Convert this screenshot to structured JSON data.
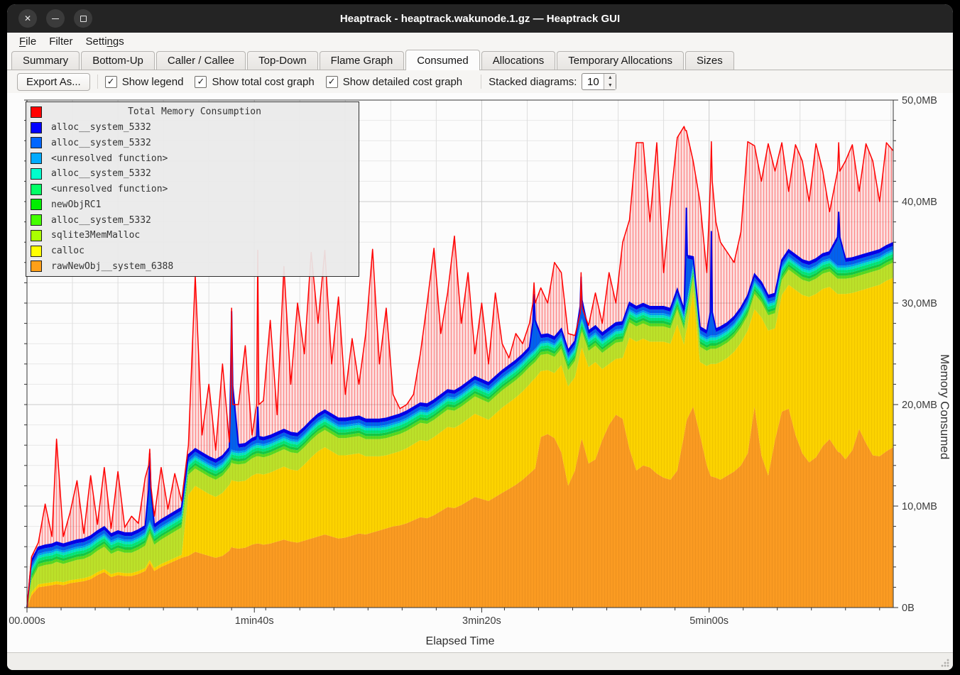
{
  "window": {
    "title": "Heaptrack - heaptrack.wakunode.1.gz — Heaptrack GUI"
  },
  "menubar": {
    "items": [
      {
        "label": "File",
        "accel": 0
      },
      {
        "label": "Filter",
        "accel": -1
      },
      {
        "label": "Settings",
        "accel": 5
      }
    ]
  },
  "tabs": {
    "items": [
      "Summary",
      "Bottom-Up",
      "Caller / Callee",
      "Top-Down",
      "Flame Graph",
      "Consumed",
      "Allocations",
      "Temporary Allocations",
      "Sizes"
    ],
    "active": "Consumed"
  },
  "toolbar": {
    "export_label": "Export As...",
    "checkboxes": [
      {
        "label": "Show legend",
        "checked": true
      },
      {
        "label": "Show total cost graph",
        "checked": true
      },
      {
        "label": "Show detailed cost graph",
        "checked": true
      }
    ],
    "check_glyph": "✓",
    "stacked_label": "Stacked diagrams:",
    "stacked_value": "10"
  },
  "legend": {
    "rows": [
      {
        "swatch": "#ff0000",
        "label": "Total Memory Consumption",
        "centered": true
      },
      {
        "swatch": "#0000ff",
        "label": "alloc__system_5332"
      },
      {
        "swatch": "#0066ff",
        "label": "alloc__system_5332"
      },
      {
        "swatch": "#00aaff",
        "label": "<unresolved function>"
      },
      {
        "swatch": "#00ffcc",
        "label": "alloc__system_5332"
      },
      {
        "swatch": "#00ff66",
        "label": "<unresolved function>"
      },
      {
        "swatch": "#00ee00",
        "label": "newObjRC1"
      },
      {
        "swatch": "#44ff00",
        "label": "alloc__system_5332"
      },
      {
        "swatch": "#aaff00",
        "label": "sqlite3MemMalloc"
      },
      {
        "swatch": "#ffff00",
        "label": "calloc"
      },
      {
        "swatch": "#ffa018",
        "label": "rawNewObj__system_6388"
      }
    ]
  },
  "chart_data": {
    "type": "area",
    "stacked": true,
    "title": "Total Memory Consumption",
    "xlabel": "Elapsed Time",
    "ylabel": "Memory Consumed",
    "x_unit": "seconds",
    "y_unit": "MB",
    "xlim": [
      0,
      381
    ],
    "ylim": [
      0,
      50
    ],
    "grid": true,
    "legend_position": "top-left",
    "x_ticks": {
      "major": [
        {
          "t": 0,
          "label": "00.000s"
        },
        {
          "t": 100,
          "label": "1min40s"
        },
        {
          "t": 200,
          "label": "3min20s"
        },
        {
          "t": 300,
          "label": "5min00s"
        }
      ],
      "minor_step": 15,
      "grid_step": 20
    },
    "y_ticks": {
      "major_values": [
        0,
        10,
        20,
        30,
        40,
        50
      ],
      "major_labels": [
        "0B",
        "10,0MB",
        "20,0MB",
        "30,0MB",
        "40,0MB",
        "50,0MB"
      ],
      "minor_step": 2
    },
    "x_seconds": [
      0,
      2,
      5,
      8,
      11,
      13,
      16,
      19,
      22,
      25,
      28,
      31,
      34,
      37,
      40,
      43,
      46,
      49,
      52,
      53.5,
      54,
      54.5,
      56,
      59,
      62,
      65,
      68,
      71,
      74,
      77,
      80,
      83,
      86,
      89,
      89.5,
      90,
      90.5,
      93,
      96,
      99,
      101,
      101.5,
      102,
      104,
      107,
      110,
      113,
      116,
      119,
      122,
      125,
      128,
      131,
      134,
      137,
      140,
      143,
      146,
      149,
      152,
      155,
      158,
      161,
      164,
      167,
      170,
      173,
      176,
      179,
      182,
      185,
      188,
      191,
      194,
      197,
      200,
      203,
      206,
      209,
      212,
      215,
      218,
      221,
      222.5,
      223,
      223.5,
      226,
      229,
      232,
      235,
      238,
      241,
      243.3,
      243.7,
      244.1,
      247,
      250,
      253,
      256,
      259,
      262,
      265,
      268,
      271,
      274,
      277,
      280,
      283,
      286,
      289,
      289.6,
      290,
      290.4,
      293,
      296,
      299,
      300.6,
      301,
      301.4,
      303,
      305,
      308,
      311,
      314,
      317,
      320,
      323,
      326,
      329,
      332,
      335,
      338,
      341,
      344,
      347,
      350,
      353,
      356.5,
      357,
      357.5,
      360,
      363,
      366,
      369,
      372,
      375,
      378,
      381
    ],
    "total": {
      "name": "Total Memory Consumption",
      "color": "#ff0000",
      "values": [
        0,
        5.0,
        6.4,
        10.2,
        7.0,
        16.6,
        7.0,
        9.4,
        12.5,
        7.3,
        13.0,
        8.2,
        13.8,
        7.8,
        13.4,
        7.9,
        9.0,
        8.3,
        12.8,
        14.0,
        15.6,
        12.0,
        9.0,
        13.8,
        9.7,
        13.2,
        10.5,
        16.0,
        32.7,
        17.0,
        22.0,
        15.5,
        24.0,
        16.3,
        20.0,
        29.5,
        20.0,
        20.0,
        25.8,
        17.0,
        20.0,
        35.2,
        20.0,
        20.4,
        28.3,
        19.0,
        33.6,
        22.0,
        30.0,
        25.0,
        35.0,
        28.0,
        35.2,
        24.0,
        30.6,
        21.0,
        26.5,
        22.0,
        27.0,
        35.3,
        24.0,
        29.5,
        21.0,
        19.6,
        20.0,
        21.0,
        25.0,
        30.0,
        35.4,
        27.0,
        31.0,
        36.6,
        28.0,
        33.0,
        25.0,
        30.0,
        24.0,
        31.0,
        26.0,
        24.6,
        27.0,
        26.0,
        28.0,
        30.0,
        32.0,
        30.0,
        31.5,
        30.0,
        34.0,
        33.0,
        27.0,
        26.8,
        29.0,
        33.0,
        29.6,
        27.8,
        31.0,
        28.0,
        33.0,
        30.0,
        36.0,
        38.2,
        45.8,
        45.8,
        38.0,
        45.8,
        33.0,
        40.0,
        46.3,
        47.4,
        47.0,
        47.0,
        46.6,
        44.0,
        40.0,
        33.0,
        42.0,
        45.9,
        42.0,
        38.0,
        36.0,
        35.0,
        34.0,
        37.0,
        45.9,
        45.5,
        42.0,
        45.7,
        43.0,
        45.8,
        41.0,
        45.6,
        44.0,
        40.0,
        45.7,
        43.0,
        39.0,
        43.0,
        45.8,
        43.0,
        44.0,
        45.6,
        41.0,
        45.7,
        44.0,
        40.0,
        45.8,
        45.0
      ]
    },
    "series": [
      {
        "name": "rawNewObj__system_6388",
        "swatch": "#ffa018",
        "fill": "#fc9c22",
        "values": [
          0,
          1.2,
          2.0,
          2.1,
          2.2,
          2.3,
          2.2,
          2.4,
          2.5,
          2.6,
          2.8,
          3.2,
          3.5,
          3.0,
          3.2,
          3.1,
          3.1,
          3.3,
          3.6,
          4.2,
          4.4,
          4.2,
          3.6,
          4.0,
          4.3,
          4.6,
          4.9,
          5.1,
          5.5,
          5.3,
          5.1,
          4.9,
          5.1,
          5.6,
          5.8,
          6.0,
          5.9,
          5.8,
          5.9,
          6.2,
          6.3,
          6.3,
          6.3,
          6.2,
          6.3,
          6.5,
          6.7,
          6.5,
          6.4,
          6.6,
          6.8,
          7.0,
          7.2,
          7.0,
          6.8,
          6.9,
          7.1,
          7.3,
          7.2,
          7.4,
          7.6,
          7.8,
          8.0,
          8.1,
          8.3,
          8.6,
          8.9,
          8.8,
          9.1,
          9.5,
          9.9,
          9.8,
          10.1,
          10.5,
          10.9,
          10.7,
          10.5,
          10.9,
          11.3,
          11.7,
          12.1,
          12.6,
          13.2,
          13.5,
          13.6,
          13.7,
          16.8,
          17.1,
          16.7,
          15.3,
          12.0,
          13.5,
          16.0,
          16.4,
          16.6,
          14.2,
          14.6,
          16.5,
          18.0,
          19.0,
          18.6,
          15.6,
          13.5,
          14.0,
          13.8,
          13.2,
          12.8,
          12.6,
          13.5,
          17.0,
          17.8,
          18.3,
          18.6,
          19.8,
          17.0,
          14.0,
          13.0,
          12.9,
          12.9,
          12.8,
          12.6,
          13.0,
          13.4,
          14.0,
          15.2,
          19.8,
          15.0,
          13.0,
          16.5,
          19.3,
          19.6,
          17.0,
          15.2,
          14.3,
          14.8,
          15.9,
          16.6,
          15.4,
          15.3,
          15.3,
          14.6,
          15.5,
          17.6,
          16.2,
          15.0,
          14.9,
          15.4,
          15.8
        ]
      },
      {
        "name": "calloc",
        "swatch": "#ffff00",
        "fill": "#fdd500",
        "values": [
          0,
          0.3,
          0.3,
          0.3,
          0.3,
          0.3,
          0.3,
          0.3,
          0.3,
          0.3,
          0.3,
          0.3,
          0.3,
          0.3,
          0.3,
          0.3,
          0.3,
          0.3,
          0.3,
          0.3,
          0.3,
          0.3,
          0.3,
          0.3,
          0.3,
          0.3,
          0.3,
          6.0,
          6.5,
          6.3,
          6.1,
          6.0,
          6.2,
          6.5,
          6.5,
          6.6,
          6.6,
          6.6,
          6.6,
          6.8,
          6.9,
          6.9,
          6.9,
          6.9,
          7.0,
          7.1,
          7.2,
          7.1,
          7.1,
          7.5,
          8.0,
          8.4,
          8.6,
          8.4,
          8.2,
          8.1,
          8.0,
          7.9,
          7.7,
          7.5,
          7.3,
          7.2,
          7.2,
          7.3,
          7.4,
          7.5,
          7.6,
          7.6,
          7.7,
          7.8,
          7.9,
          7.9,
          8.0,
          8.1,
          8.2,
          8.1,
          8.0,
          8.2,
          8.4,
          8.5,
          8.6,
          8.7,
          8.8,
          8.9,
          8.9,
          8.9,
          6.5,
          6.3,
          6.4,
          8.6,
          9.8,
          9.2,
          9.0,
          9.0,
          9.0,
          9.5,
          9.6,
          7.0,
          6.0,
          5.5,
          6.0,
          11.0,
          12.7,
          12.5,
          12.4,
          13.0,
          13.4,
          13.4,
          14.4,
          8.9,
          9.0,
          9.0,
          9.0,
          11.3,
          7.2,
          9.8,
          11.0,
          11.1,
          11.1,
          11.2,
          11.6,
          11.6,
          11.8,
          12.1,
          12.1,
          9.6,
          13.6,
          14.3,
          11.0,
          11.5,
          12.2,
          14.3,
          15.6,
          16.3,
          16.1,
          15.5,
          15.0,
          15.5,
          15.6,
          15.6,
          16.3,
          15.5,
          13.6,
          15.2,
          16.6,
          16.9,
          16.8,
          16.7
        ]
      },
      {
        "name": "sqlite3MemMalloc",
        "swatch": "#aaff00",
        "fill": "#bce32a",
        "values": [
          0,
          1.2,
          1.7,
          1.8,
          1.8,
          1.9,
          1.8,
          1.8,
          1.9,
          1.9,
          2.0,
          2.1,
          2.2,
          2.0,
          2.1,
          2.0,
          2.0,
          2.1,
          2.2,
          2.5,
          2.6,
          2.5,
          2.3,
          2.4,
          2.5,
          2.6,
          2.7,
          2.0,
          1.7,
          1.7,
          1.7,
          1.7,
          1.7,
          1.7,
          1.7,
          1.7,
          1.7,
          1.7,
          1.7,
          1.7,
          1.7,
          1.7,
          1.7,
          1.7,
          1.7,
          1.7,
          1.7,
          1.7,
          1.7,
          1.7,
          1.7,
          1.7,
          1.7,
          1.7,
          1.7,
          1.7,
          1.7,
          1.7,
          1.7,
          1.7,
          1.7,
          1.7,
          1.7,
          1.7,
          1.7,
          1.7,
          1.7,
          1.7,
          1.7,
          1.7,
          1.7,
          1.7,
          1.7,
          1.7,
          1.7,
          1.7,
          1.7,
          1.7,
          1.7,
          1.7,
          1.7,
          1.7,
          1.7,
          1.6,
          1.6,
          1.6,
          1.6,
          1.6,
          1.6,
          1.6,
          1.6,
          1.6,
          1.6,
          1.6,
          1.6,
          1.6,
          1.6,
          1.6,
          1.6,
          1.6,
          1.6,
          1.5,
          1.5,
          1.5,
          1.5,
          1.5,
          1.5,
          1.5,
          1.5,
          1.5,
          1.5,
          1.5,
          1.5,
          1.5,
          1.5,
          1.5,
          1.5,
          1.5,
          1.5,
          1.5,
          1.5,
          1.5,
          1.5,
          1.5,
          1.5,
          1.5,
          1.5,
          1.5,
          1.5,
          1.5,
          1.5,
          1.5,
          1.5,
          1.5,
          1.5,
          1.5,
          1.5,
          1.5,
          1.5,
          1.5,
          1.5,
          1.5,
          1.5,
          1.5,
          1.5,
          1.5,
          1.5,
          1.5
        ]
      },
      {
        "name": "alloc__system_5332",
        "swatch": "#44ff00",
        "fill": "#55dd22",
        "const": 0.3
      },
      {
        "name": "newObjRC1",
        "swatch": "#00ee00",
        "fill": "#10cc44",
        "const": 0.25
      },
      {
        "name": "<unresolved function>",
        "swatch": "#00ff66",
        "fill": "#00e87a",
        "const": 0.3
      },
      {
        "name": "alloc__system_5332",
        "swatch": "#00ffcc",
        "fill": "#00e6c8",
        "const": 0.25
      },
      {
        "name": "<unresolved function>",
        "swatch": "#00aaff",
        "fill": "#00a2f3",
        "const": 0.2
      },
      {
        "name": "alloc__system_5332",
        "swatch": "#0066ff",
        "fill": "#0061f2",
        "base": 0.35,
        "spikes": [
          [
            53.5,
            3.0
          ],
          [
            54,
            6.3
          ],
          [
            54.5,
            3.0
          ],
          [
            89.5,
            6.0
          ],
          [
            90,
            13.3
          ],
          [
            90.5,
            6.0
          ],
          [
            101.5,
            3.3
          ],
          [
            222.5,
            2.5
          ],
          [
            223,
            5.2
          ],
          [
            223.5,
            2.5
          ],
          [
            243.3,
            1.5
          ],
          [
            243.7,
            4.0
          ],
          [
            244.1,
            1.5
          ],
          [
            289.6,
            4.0
          ],
          [
            290,
            9.0
          ],
          [
            290.4,
            4.0
          ],
          [
            300.6,
            2.0
          ],
          [
            301,
            10.0
          ],
          [
            301.4,
            2.0
          ],
          [
            356.5,
            2.5
          ],
          [
            357,
            5.0
          ],
          [
            357.5,
            2.5
          ]
        ]
      },
      {
        "name": "alloc__system_5332",
        "swatch": "#0000ff",
        "fill": "#0000ee",
        "const": 0.3
      }
    ],
    "colors": {
      "grid_minor": "#e7e7e7",
      "grid_major": "#cbcbcb",
      "axis": "#333333",
      "total_fill": "rgba(255,0,0,0.10)",
      "total_hatch": "rgba(255,0,0,0.40)",
      "stack_top_line": "#0000e6"
    }
  },
  "status": {
    "text": ""
  }
}
